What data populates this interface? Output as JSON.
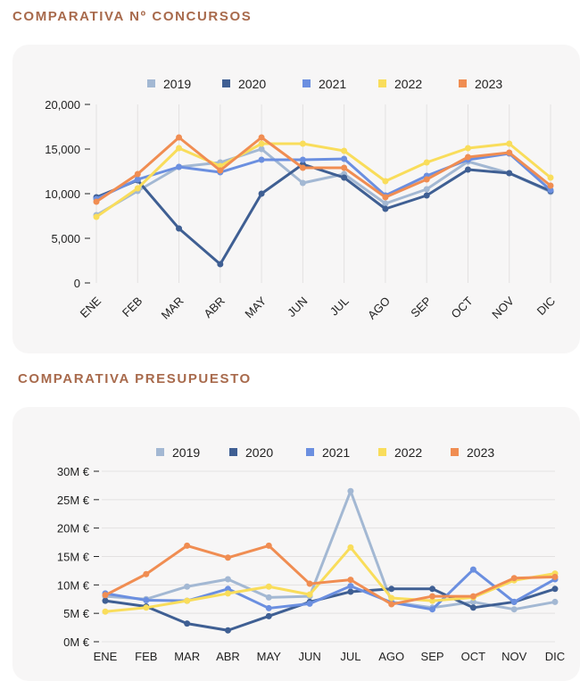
{
  "colors": {
    "title": "#a86a4c",
    "panel": "#f7f6f6",
    "grid": "#e3e1e1",
    "2019": "#a3b8d3",
    "2020": "#3f5f93",
    "2021": "#6b8fe0",
    "2022": "#f9dd5b",
    "2023": "#f08d52"
  },
  "chart_data": [
    {
      "type": "line",
      "title": "COMPARATIVA Nº CONCURSOS",
      "categories": [
        "ENE",
        "FEB",
        "MAR",
        "ABR",
        "MAY",
        "JUN",
        "JUL",
        "AGO",
        "SEP",
        "OCT",
        "NOV",
        "DIC"
      ],
      "y_ticks": [
        0,
        5000,
        10000,
        15000,
        20000
      ],
      "y_tick_labels": [
        "0",
        "5,000",
        "10,000",
        "15,000",
        "20,000"
      ],
      "ylim": [
        0,
        20000
      ],
      "legend_position": "top",
      "grid": "vertical",
      "series": [
        {
          "name": "2019",
          "color": "#a3b8d3",
          "values": [
            7600,
            10300,
            13000,
            13500,
            15000,
            11200,
            12200,
            8900,
            10500,
            13600,
            12300,
            10200
          ]
        },
        {
          "name": "2020",
          "color": "#3f5f93",
          "values": [
            9600,
            11500,
            6100,
            2100,
            10000,
            13300,
            11800,
            8300,
            9800,
            12700,
            12300,
            10300
          ]
        },
        {
          "name": "2021",
          "color": "#6b8fe0",
          "values": [
            9400,
            11600,
            13000,
            12400,
            13800,
            13800,
            13900,
            9800,
            12000,
            13800,
            14500,
            10400
          ]
        },
        {
          "name": "2022",
          "color": "#f9dd5b",
          "values": [
            7400,
            10600,
            15100,
            13100,
            15600,
            15600,
            14800,
            11400,
            13500,
            15100,
            15600,
            11800
          ]
        },
        {
          "name": "2023",
          "color": "#f08d52",
          "values": [
            9100,
            12200,
            16300,
            12600,
            16300,
            12900,
            12900,
            9600,
            11600,
            14100,
            14600,
            10900
          ]
        }
      ]
    },
    {
      "type": "line",
      "title": "COMPARATIVA PRESUPUESTO",
      "categories": [
        "ENE",
        "FEB",
        "MAR",
        "ABR",
        "MAY",
        "JUN",
        "JUL",
        "AGO",
        "SEP",
        "OCT",
        "NOV",
        "DIC"
      ],
      "y_ticks": [
        0,
        5,
        10,
        15,
        20,
        25,
        30
      ],
      "y_tick_labels": [
        "0M €",
        "5M €",
        "10M €",
        "15M €",
        "20M €",
        "25M €",
        "30M €"
      ],
      "y_unit": "M €",
      "ylim": [
        0,
        30
      ],
      "legend_position": "top",
      "grid": "horizontal",
      "series": [
        {
          "name": "2019",
          "color": "#a3b8d3",
          "values": [
            8.0,
            7.5,
            9.7,
            11.0,
            7.8,
            8.0,
            26.5,
            7.0,
            6.0,
            7.0,
            5.7,
            7.0
          ]
        },
        {
          "name": "2020",
          "color": "#3f5f93",
          "values": [
            7.2,
            6.2,
            3.2,
            2.0,
            4.5,
            7.0,
            8.8,
            9.3,
            9.3,
            6.0,
            7.0,
            9.3
          ]
        },
        {
          "name": "2021",
          "color": "#6b8fe0",
          "values": [
            8.5,
            7.3,
            7.2,
            9.3,
            5.9,
            6.7,
            9.8,
            6.9,
            5.7,
            12.7,
            7.0,
            11.0
          ]
        },
        {
          "name": "2022",
          "color": "#f9dd5b",
          "values": [
            5.3,
            6.0,
            7.2,
            8.5,
            9.7,
            8.3,
            16.6,
            7.7,
            7.2,
            7.8,
            10.8,
            12.0
          ]
        },
        {
          "name": "2023",
          "color": "#f08d52",
          "values": [
            8.2,
            11.9,
            16.9,
            14.8,
            16.9,
            10.2,
            10.9,
            6.6,
            8.0,
            8.0,
            11.2,
            11.4
          ]
        }
      ]
    }
  ]
}
